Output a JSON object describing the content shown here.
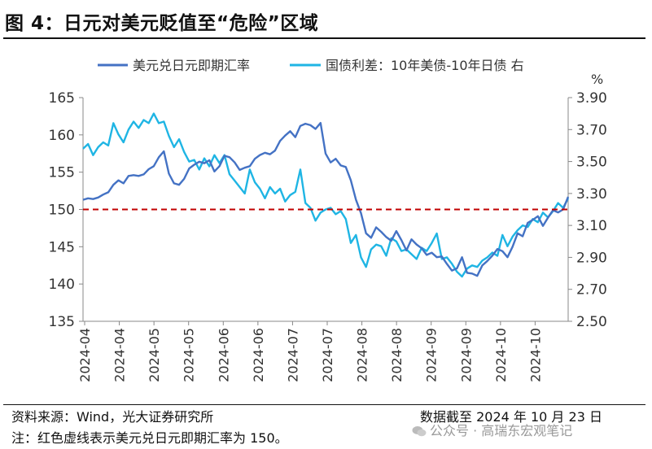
{
  "figure": {
    "title": "图 4：日元对美元贬值至“危险”区域"
  },
  "footer": {
    "source": "资料来源：Wind，光大证券研究所",
    "note": "注：红色虚线表示美元兑日元即期汇率为 150。",
    "date": "数据截至 2024 年 10 月 23 日",
    "watermark": "公众号 · 高瑞东宏观笔记"
  },
  "chart_data": {
    "type": "line",
    "title": "",
    "legend_position": "top",
    "right_axis_unit": "%",
    "colors": {
      "usdjpy": "#4472C4",
      "spread": "#1FB5E4",
      "ref_line": "#C00000",
      "axis": "#888888"
    },
    "x_ticks": [
      "2024-04",
      "2024-04",
      "2024-05",
      "2024-05",
      "2024-06",
      "2024-06",
      "2024-07",
      "2024-07",
      "2024-08",
      "2024-08",
      "2024-09",
      "2024-09",
      "2024-10",
      "2024-10"
    ],
    "left_axis": {
      "min": 135,
      "max": 165,
      "ticks": [
        "135",
        "140",
        "145",
        "150",
        "155",
        "160",
        "165"
      ]
    },
    "right_axis": {
      "min": 2.5,
      "max": 3.9,
      "ticks": [
        "2.50",
        "2.70",
        "2.90",
        "3.10",
        "3.30",
        "3.50",
        "3.70",
        "3.90"
      ]
    },
    "reference_line": {
      "axis": "left",
      "value": 150
    },
    "series": [
      {
        "name": "美元兑日元即期汇率",
        "axis": "left",
        "values": [
          151.3,
          151.5,
          151.4,
          151.6,
          152.0,
          152.3,
          153.3,
          153.9,
          153.5,
          154.5,
          154.6,
          154.5,
          154.7,
          155.4,
          155.8,
          157.0,
          157.8,
          154.8,
          153.5,
          153.3,
          154.1,
          155.5,
          156.0,
          156.4,
          156.2,
          156.6,
          155.1,
          155.8,
          157.2,
          157.0,
          156.3,
          155.3,
          155.6,
          155.8,
          156.8,
          157.3,
          157.6,
          157.4,
          157.9,
          159.2,
          159.9,
          160.5,
          159.7,
          161.2,
          161.5,
          161.3,
          160.8,
          161.6,
          157.5,
          156.3,
          156.8,
          155.9,
          155.7,
          153.9,
          151.3,
          149.5,
          146.8,
          146.2,
          147.6,
          147.0,
          146.3,
          145.8,
          147.1,
          145.9,
          144.5,
          146.0,
          145.3,
          144.8,
          143.9,
          144.2,
          143.6,
          143.7,
          142.7,
          141.8,
          142.1,
          143.6,
          141.5,
          141.4,
          141.1,
          142.5,
          143.1,
          143.8,
          144.7,
          144.4,
          143.6,
          145.0,
          146.8,
          146.4,
          148.2,
          148.6,
          149.1,
          147.8,
          148.9,
          149.9,
          149.6,
          150.0,
          151.7
        ]
      },
      {
        "name": "国债利差：10年美债-10年日债 右",
        "axis": "right",
        "values": [
          3.58,
          3.61,
          3.54,
          3.59,
          3.62,
          3.6,
          3.74,
          3.67,
          3.62,
          3.7,
          3.75,
          3.71,
          3.76,
          3.74,
          3.8,
          3.74,
          3.75,
          3.66,
          3.59,
          3.64,
          3.56,
          3.5,
          3.51,
          3.45,
          3.52,
          3.47,
          3.54,
          3.49,
          3.54,
          3.42,
          3.38,
          3.34,
          3.3,
          3.45,
          3.37,
          3.33,
          3.27,
          3.34,
          3.3,
          3.33,
          3.25,
          3.29,
          3.31,
          3.45,
          3.24,
          3.21,
          3.13,
          3.18,
          3.2,
          3.21,
          3.17,
          3.19,
          3.14,
          2.99,
          3.04,
          2.9,
          2.84,
          2.95,
          2.98,
          2.97,
          2.91,
          3.02,
          3.0,
          2.94,
          2.95,
          2.92,
          2.89,
          2.96,
          2.94,
          2.99,
          3.05,
          2.89,
          2.9,
          2.86,
          2.81,
          2.78,
          2.83,
          2.85,
          2.84,
          2.88,
          2.9,
          2.93,
          2.91,
          3.04,
          2.97,
          3.03,
          3.07,
          3.1,
          3.09,
          3.14,
          3.12,
          3.18,
          3.15,
          3.19,
          3.24,
          3.21,
          3.27
        ]
      }
    ]
  }
}
